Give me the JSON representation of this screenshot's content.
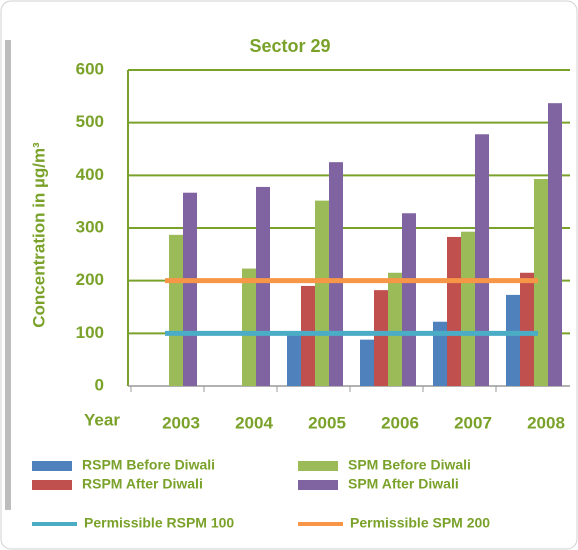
{
  "chart_data": {
    "type": "bar",
    "title": "Sector 29",
    "ylabel": "Concentration in µg/m³",
    "xlabel": "Year",
    "categories": [
      "2003",
      "2004",
      "2005",
      "2006",
      "2007",
      "2008"
    ],
    "ylim": [
      0,
      600
    ],
    "yticks": [
      0,
      100,
      200,
      300,
      400,
      500,
      600
    ],
    "grid": true,
    "series": [
      {
        "name": "RSPM Before Diwali",
        "color": "#4f81bd",
        "type": "bar",
        "values": [
          null,
          null,
          100,
          88,
          122,
          173
        ]
      },
      {
        "name": "SPM Before Diwali",
        "color": "#9bbb59",
        "type": "bar",
        "values": [
          287,
          223,
          352,
          215,
          293,
          393
        ]
      },
      {
        "name": "RSPM After Diwali",
        "color": "#c0504d",
        "type": "bar",
        "values": [
          null,
          null,
          190,
          182,
          283,
          215
        ]
      },
      {
        "name": "SPM After Diwali",
        "color": "#8064a2",
        "type": "bar",
        "values": [
          367,
          378,
          425,
          328,
          478,
          537
        ]
      },
      {
        "name": "Permissible RSPM 100",
        "color": "#4bacc6",
        "type": "line",
        "values": [
          100,
          100,
          100,
          100,
          100,
          100
        ]
      },
      {
        "name": "Permissible SPM 200",
        "color": "#f79646",
        "type": "line",
        "values": [
          200,
          200,
          200,
          200,
          200,
          200
        ]
      }
    ]
  }
}
